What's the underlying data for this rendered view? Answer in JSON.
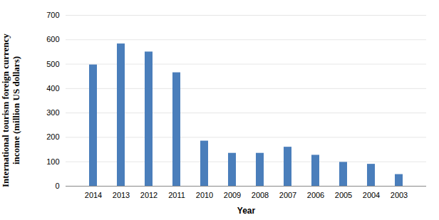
{
  "chart_data": {
    "type": "bar",
    "categories": [
      "2014",
      "2013",
      "2012",
      "2011",
      "2010",
      "2009",
      "2008",
      "2007",
      "2006",
      "2005",
      "2004",
      "2003"
    ],
    "values": [
      497,
      583,
      550,
      465,
      185,
      135,
      135,
      160,
      127,
      98,
      90,
      48
    ],
    "color": "#4a7ebb",
    "x_label": "Year",
    "y_label": "International tourism foreign currency income (million US dollars)",
    "ylim": [
      0,
      700
    ],
    "yticks": [
      0,
      100,
      200,
      300,
      400,
      500,
      600,
      700
    ],
    "grid": true
  }
}
